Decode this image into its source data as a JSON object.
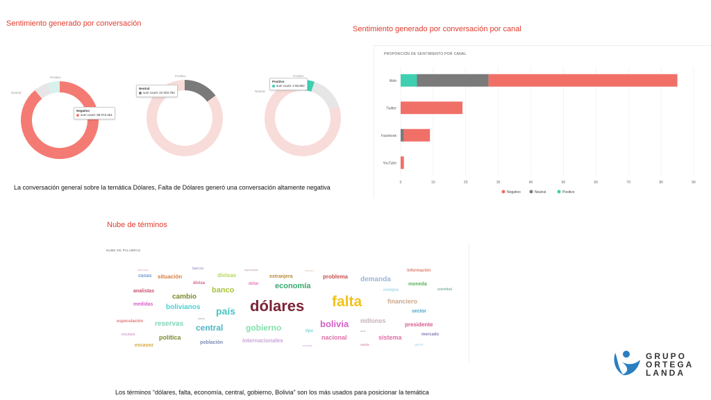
{
  "titles": {
    "donuts": "Sentimiento generado por conversación",
    "channel": "Sentimiento generado por conversación por canal",
    "cloud": "Nube de términos"
  },
  "captions": {
    "donuts": "La conversación general sobre la temática Dólares, Falta de Dólares  generó una conversación altamente negativa",
    "cloud": "Los términos “dólares, falta, economía, central, gobierno, Bolivia” son los más usados para posicionar la temática"
  },
  "colors": {
    "negativo": "#f07068",
    "neutral": "#7a7a7a",
    "positivo": "#3ecfb0"
  },
  "chart_data": [
    {
      "type": "pie",
      "id": "donut-1",
      "slices": [
        {
          "label": "Negativo",
          "value": 0.89,
          "color": "#f47b73"
        },
        {
          "label": "Neutral",
          "value": 0.06,
          "color": "#e6e6e6"
        },
        {
          "label": "Positivo",
          "value": 0.05,
          "color": "#d8f1ec"
        }
      ],
      "labels": {
        "top": "Positivo",
        "left": "Neutral",
        "bottom": "Negativo"
      },
      "tooltip": {
        "title": "Negativo",
        "text": "sum count: 88 073.451"
      }
    },
    {
      "type": "pie",
      "id": "donut-2",
      "slices": [
        {
          "label": "Neutral",
          "value": 0.15,
          "color": "#7a7a7a"
        },
        {
          "label": "Negativo",
          "value": 0.85,
          "color": "#f8dcd9"
        }
      ],
      "labels": {
        "top": "Positivo",
        "left": "Neutral",
        "bottom": "Negativo"
      },
      "tooltip": {
        "title": "Neutral",
        "text": "sum count: 22 003.752"
      }
    },
    {
      "type": "pie",
      "id": "donut-3",
      "slices": [
        {
          "label": "Positivo",
          "value": 0.05,
          "color": "#3ecfb0"
        },
        {
          "label": "Neutral",
          "value": 0.15,
          "color": "#e6e6e6"
        },
        {
          "label": "Negativo",
          "value": 0.8,
          "color": "#f8dcd9"
        }
      ],
      "labels": {
        "top": "Positivo",
        "left": "Neutral",
        "bottom": "Negativo"
      },
      "tooltip": {
        "title": "Positivo",
        "text": "sum count: 4 56.852"
      }
    },
    {
      "type": "bar",
      "id": "channel-bars",
      "orientation": "horizontal",
      "stacked": true,
      "title": "PROPORCIÓN DE SENTIMIENTO POR CANAL",
      "categories": [
        "Web",
        "Twitter",
        "Facebook",
        "YouTube"
      ],
      "series": [
        {
          "name": "Positivo",
          "values": [
            5,
            0,
            0,
            0
          ]
        },
        {
          "name": "Neutral",
          "values": [
            22,
            0,
            1,
            0
          ]
        },
        {
          "name": "Negativo",
          "values": [
            58,
            19,
            8,
            1
          ]
        }
      ],
      "stack_order": [
        "Positivo",
        "Neutral",
        "Negativo"
      ],
      "legend_order": [
        "Negativo",
        "Neutral",
        "Positivo"
      ],
      "xlim": [
        0,
        90
      ],
      "xticks": [
        0,
        10,
        20,
        30,
        40,
        50,
        60,
        70,
        80,
        90
      ],
      "grid": true,
      "legend": "bottom"
    },
    {
      "type": "wordcloud",
      "id": "term-cloud",
      "title": "NUBE DE PALABRAS",
      "words": [
        {
          "text": "dólares",
          "weight": 22,
          "color": "#7a2435"
        },
        {
          "text": "falta",
          "weight": 21,
          "color": "#f2c21b"
        },
        {
          "text": "país",
          "weight": 14,
          "color": "#4cc4c4"
        },
        {
          "text": "bolivia",
          "weight": 13,
          "color": "#d45fc6"
        },
        {
          "text": "central",
          "weight": 12,
          "color": "#4ab6c6"
        },
        {
          "text": "gobierno",
          "weight": 12,
          "color": "#7fe0a8"
        },
        {
          "text": "banco",
          "weight": 11,
          "color": "#a8c33b"
        },
        {
          "text": "economía",
          "weight": 11,
          "color": "#3aa870"
        },
        {
          "text": "cambio",
          "weight": 10,
          "color": "#7b8a2c"
        },
        {
          "text": "bolivianos",
          "weight": 10,
          "color": "#4ad1d1"
        },
        {
          "text": "reservas",
          "weight": 10,
          "color": "#7ed4b8"
        },
        {
          "text": "demanda",
          "weight": 10,
          "color": "#9db6d8"
        },
        {
          "text": "millones",
          "weight": 9,
          "color": "#c7b1b6"
        },
        {
          "text": "financiero",
          "weight": 9,
          "color": "#c9a98e"
        },
        {
          "text": "nacional",
          "weight": 9,
          "color": "#e06fa6"
        },
        {
          "text": "sistema",
          "weight": 9,
          "color": "#e06fa6"
        },
        {
          "text": "política",
          "weight": 9,
          "color": "#7b8a2c"
        },
        {
          "text": "problema",
          "weight": 8,
          "color": "#c94d4d"
        },
        {
          "text": "situación",
          "weight": 8,
          "color": "#d87b3b"
        },
        {
          "text": "divisas",
          "weight": 8,
          "color": "#b6d85a"
        },
        {
          "text": "presidente",
          "weight": 8,
          "color": "#d65a8c"
        },
        {
          "text": "población",
          "weight": 7,
          "color": "#7a8ab2"
        },
        {
          "text": "internacionales",
          "weight": 8,
          "color": "#c9a5d8"
        },
        {
          "text": "casas",
          "weight": 7,
          "color": "#7a9bd0"
        },
        {
          "text": "analistas",
          "weight": 7,
          "color": "#c94d6a"
        },
        {
          "text": "medidas",
          "weight": 7,
          "color": "#d45fc6"
        },
        {
          "text": "extranjera",
          "weight": 7,
          "color": "#b88a3b"
        },
        {
          "text": "moneda",
          "weight": 7,
          "color": "#5ab05a"
        },
        {
          "text": "compra",
          "weight": 6,
          "color": "#a6d6e8"
        },
        {
          "text": "sector",
          "weight": 7,
          "color": "#4aa6c6"
        },
        {
          "text": "escasez",
          "weight": 7,
          "color": "#d8a63b"
        },
        {
          "text": "especulación",
          "weight": 6,
          "color": "#e07a7a"
        },
        {
          "text": "divisa",
          "weight": 6,
          "color": "#d45f8c"
        },
        {
          "text": "dólar",
          "weight": 6,
          "color": "#e07ab8"
        },
        {
          "text": "información",
          "weight": 6,
          "color": "#e07a6a"
        },
        {
          "text": "mercado",
          "weight": 6,
          "color": "#8a7ab8"
        },
        {
          "text": "bancos",
          "weight": 5,
          "color": "#8a8ab8"
        },
        {
          "text": "tipo",
          "weight": 6,
          "color": "#7ad6d6"
        },
        {
          "text": "autoridad",
          "weight": 5,
          "color": "#5a9a8a"
        },
        {
          "text": "recursos",
          "weight": 5,
          "color": "#c97ab8"
        },
        {
          "text": "venta",
          "weight": 5,
          "color": "#d87aa6"
        },
        {
          "text": "gente",
          "weight": 5,
          "color": "#a6d8e8"
        },
        {
          "text": "supervisión",
          "weight": 4,
          "color": "#b88a8a"
        },
        {
          "text": "falencias",
          "weight": 4,
          "color": "#e0a6c6"
        },
        {
          "text": "dólares",
          "weight": 4,
          "color": "#e0c6a6",
          "minor": true
        },
        {
          "text": "arce",
          "weight": 4,
          "color": "#a6a6a6"
        },
        {
          "text": "santa",
          "weight": 4,
          "color": "#a6a6a6"
        },
        {
          "text": "medida",
          "weight": 4,
          "color": "#c6a6e0"
        }
      ]
    }
  ],
  "logo": {
    "lines": [
      "GRUPO",
      "ORTEGA",
      "LANDA"
    ],
    "icon": "wave-figure-icon"
  }
}
